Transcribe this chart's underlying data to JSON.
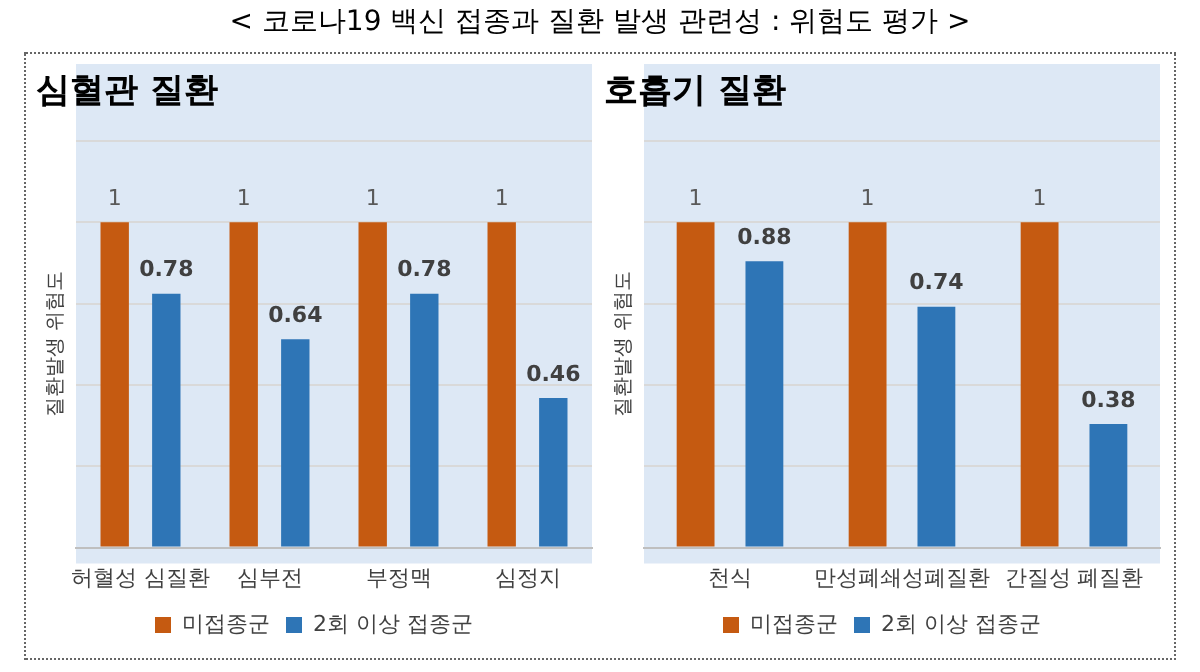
{
  "chart_data": [
    {
      "type": "bar",
      "title": "심혈관 질환",
      "ylabel": "질환발생 위험도",
      "annotations": [
        "< 코로나19 백신 접종과 질환 발생 관련성 : 위험도 평가 >"
      ],
      "categories": [
        "허혈성 심질환",
        "심부전",
        "부정맥",
        "심정지"
      ],
      "series": [
        {
          "name": "미접종군",
          "color": "#c55a11",
          "values": [
            1,
            1,
            1,
            1
          ]
        },
        {
          "name": "2회 이상 접종군",
          "color": "#2e75b6",
          "values": [
            0.78,
            0.64,
            0.78,
            0.46
          ]
        }
      ],
      "ylim": [
        0,
        1.25
      ],
      "yticks": [
        {
          "value": 0,
          "label": null
        },
        {
          "value": 0.25,
          "label": null
        },
        {
          "value": 0.5,
          "label": null
        },
        {
          "value": 0.75,
          "label": null
        },
        {
          "value": 1,
          "label": null
        },
        {
          "value": 1.25,
          "label": null
        }
      ],
      "tick_labels": "x",
      "grid": "y",
      "legend": "bottom",
      "data_labels": true
    },
    {
      "type": "bar",
      "title": "호흡기 질환",
      "ylabel": "질환발생 위험도",
      "categories": [
        "천식",
        "만성폐쇄성폐질환",
        "간질성 폐질환"
      ],
      "series": [
        {
          "name": "미접종군",
          "color": "#c55a11",
          "values": [
            1,
            1,
            1
          ]
        },
        {
          "name": "2회 이상 접종군",
          "color": "#2e75b6",
          "values": [
            0.88,
            0.74,
            0.38
          ]
        }
      ],
      "ylim": [
        0,
        1.25
      ],
      "yticks": [
        {
          "value": 0,
          "label": null
        },
        {
          "value": 0.25,
          "label": null
        },
        {
          "value": 0.5,
          "label": null
        },
        {
          "value": 0.75,
          "label": null
        },
        {
          "value": 1,
          "label": null
        },
        {
          "value": 1.25,
          "label": null
        }
      ],
      "tick_labels": "x",
      "grid": "y",
      "legend": "bottom",
      "data_labels": true
    }
  ]
}
